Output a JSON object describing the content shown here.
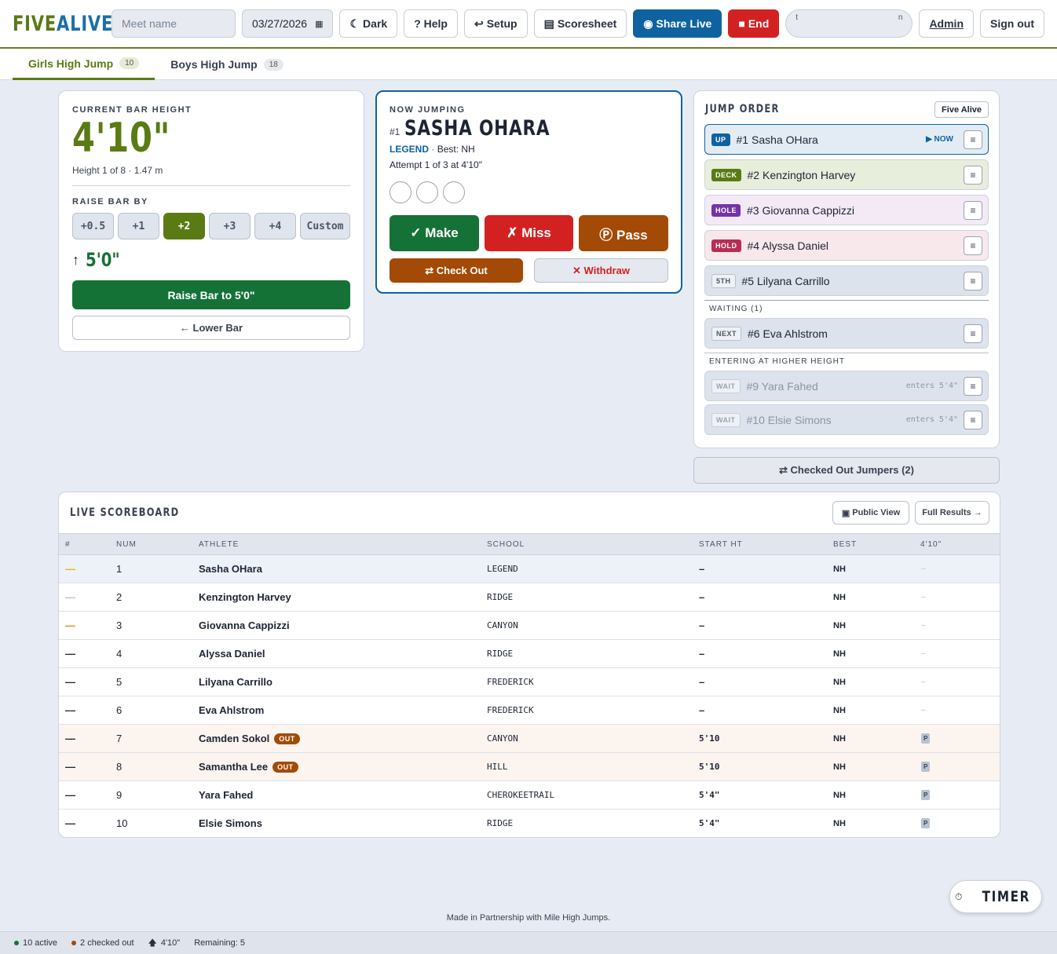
{
  "header": {
    "logo_a": "FIVE",
    "logo_b": "ALIVE",
    "meet_placeholder": "Meet name",
    "date": "03/27/2026",
    "dark": "Dark",
    "help": "? Help",
    "setup": "Setup",
    "scoresheet": "Scoresheet",
    "share": "Share Live",
    "end": "End",
    "pill_left": "t",
    "pill_right": "n",
    "admin": "Admin",
    "signout": "Sign out"
  },
  "tabs": [
    {
      "label": "Girls High Jump",
      "count": "10"
    },
    {
      "label": "Boys High Jump",
      "count": "18"
    }
  ],
  "bar": {
    "label": "CURRENT BAR HEIGHT",
    "height": "4'10\"",
    "sub": "Height 1 of 8 · 1.47 m",
    "raise_label": "RAISE BAR BY",
    "increments": [
      "+0.5",
      "+1",
      "+2",
      "+3",
      "+4",
      "Custom"
    ],
    "next": "5'0\"",
    "raise_btn": "Raise Bar to 5'0\"",
    "lower_btn": "← Lower Bar"
  },
  "now": {
    "label": "NOW JUMPING",
    "num": "#1",
    "name": "SASHA OHARA",
    "school": "LEGEND",
    "best": "Best: NH",
    "attempt": "Attempt 1 of 3 at 4'10\"",
    "make": "✓ Make",
    "miss": "✗ Miss",
    "pass": "Ⓟ Pass",
    "checkout": "⇄ Check Out",
    "withdraw": "✕ Withdraw"
  },
  "jump_order": {
    "title": "JUMP ORDER",
    "team": "Five Alive",
    "items": [
      {
        "badge": "UP",
        "name": "#1 Sasha OHara",
        "tag": "▶ NOW"
      },
      {
        "badge": "DECK",
        "name": "#2 Kenzington Harvey"
      },
      {
        "badge": "HOLE",
        "name": "#3 Giovanna Cappizzi"
      },
      {
        "badge": "HOLD",
        "name": "#4 Alyssa Daniel"
      },
      {
        "badge": "5TH",
        "name": "#5 Lilyana Carrillo"
      }
    ],
    "waiting_label": "WAITING (1)",
    "waiting": [
      {
        "badge": "NEXT",
        "name": "#6 Eva Ahlstrom"
      }
    ],
    "higher_label": "ENTERING AT HIGHER HEIGHT",
    "higher": [
      {
        "badge": "WAIT",
        "name": "#9 Yara Fahed",
        "enters": "enters 5'4\""
      },
      {
        "badge": "WAIT",
        "name": "#10 Elsie Simons",
        "enters": "enters 5'4\""
      }
    ],
    "checked_out": "⇄ Checked Out Jumpers (2)"
  },
  "scoreboard": {
    "title": "LIVE SCOREBOARD",
    "public": "Public View",
    "full": "Full Results →",
    "columns": [
      "#",
      "NUM",
      "ATHLETE",
      "SCHOOL",
      "START HT",
      "BEST",
      "4'10\""
    ],
    "rows": [
      {
        "place": "—",
        "num": "1",
        "athlete": "Sasha OHara",
        "out": "",
        "school": "LEGEND",
        "start": "–",
        "best": "NH",
        "h1": "–"
      },
      {
        "place": "—",
        "num": "2",
        "athlete": "Kenzington Harvey",
        "out": "",
        "school": "RIDGE",
        "start": "–",
        "best": "NH",
        "h1": "–"
      },
      {
        "place": "—",
        "num": "3",
        "athlete": "Giovanna Cappizzi",
        "out": "",
        "school": "CANYON",
        "start": "–",
        "best": "NH",
        "h1": "–"
      },
      {
        "place": "—",
        "num": "4",
        "athlete": "Alyssa Daniel",
        "out": "",
        "school": "RIDGE",
        "start": "–",
        "best": "NH",
        "h1": "–"
      },
      {
        "place": "—",
        "num": "5",
        "athlete": "Lilyana Carrillo",
        "out": "",
        "school": "FREDERICK",
        "start": "–",
        "best": "NH",
        "h1": "–"
      },
      {
        "place": "—",
        "num": "6",
        "athlete": "Eva Ahlstrom",
        "out": "",
        "school": "FREDERICK",
        "start": "–",
        "best": "NH",
        "h1": "–"
      },
      {
        "place": "—",
        "num": "7",
        "athlete": "Camden Sokol",
        "out": "OUT",
        "school": "CANYON",
        "start": "5'10",
        "best": "NH",
        "h1": "P"
      },
      {
        "place": "—",
        "num": "8",
        "athlete": "Samantha Lee",
        "out": "OUT",
        "school": "HILL",
        "start": "5'10",
        "best": "NH",
        "h1": "P"
      },
      {
        "place": "—",
        "num": "9",
        "athlete": "Yara Fahed",
        "out": "",
        "school": "CHEROKEETRAIL",
        "start": "5'4\"",
        "best": "NH",
        "h1": "P"
      },
      {
        "place": "—",
        "num": "10",
        "athlete": "Elsie Simons",
        "out": "",
        "school": "RIDGE",
        "start": "5'4\"",
        "best": "NH",
        "h1": "P"
      }
    ]
  },
  "credit": "Made in Partnership with Mile High Jumps.",
  "timer": "TIMER",
  "status": {
    "active": "10 active",
    "checked": "2 checked out",
    "height": "4'10\"",
    "remaining": "Remaining: 5"
  }
}
